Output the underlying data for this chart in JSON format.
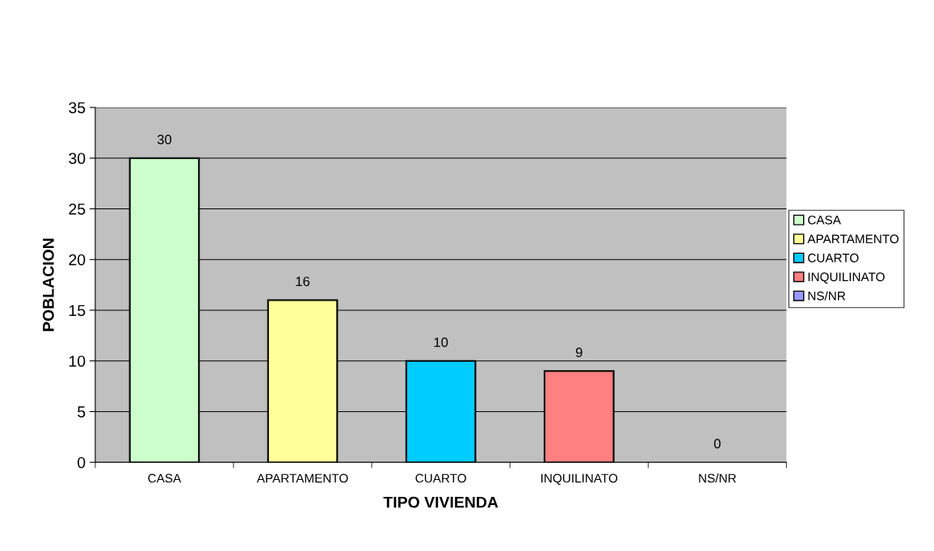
{
  "chart_data": {
    "type": "bar",
    "xlabel": "TIPO VIVIENDA",
    "ylabel": "POBLACION",
    "categories": [
      "CASA",
      "APARTAMENTO",
      "CUARTO",
      "INQUILINATO",
      "NS/NR"
    ],
    "series": [
      {
        "name": "CASA",
        "color": "#ccffcc",
        "values": [
          30,
          null,
          null,
          null,
          null
        ]
      },
      {
        "name": "APARTAMENTO",
        "color": "#ffff99",
        "values": [
          null,
          16,
          null,
          null,
          null
        ]
      },
      {
        "name": "CUARTO",
        "color": "#00ccff",
        "values": [
          null,
          null,
          10,
          null,
          null
        ]
      },
      {
        "name": "INQUILINATO",
        "color": "#ff8080",
        "values": [
          null,
          null,
          null,
          9,
          null
        ]
      },
      {
        "name": "NS/NR",
        "color": "#9999ff",
        "values": [
          null,
          null,
          null,
          null,
          0
        ]
      }
    ],
    "ylim": [
      0,
      35
    ],
    "yticks": [
      0,
      5,
      10,
      15,
      20,
      25,
      30,
      35
    ],
    "grid": "y",
    "legend": "right",
    "data_labels": true
  }
}
